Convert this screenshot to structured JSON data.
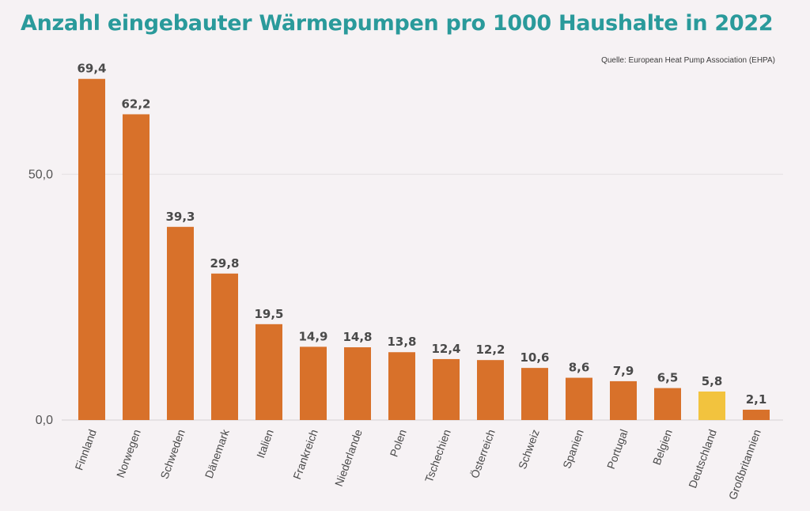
{
  "title": "Anzahl eingebauter Wärmepumpen pro 1000 Haushalte in 2022",
  "source": "Quelle: European Heat Pump Association (EHPA)",
  "colors": {
    "bar": "#d8712a",
    "highlight": "#f2c33e",
    "title": "#2a9a9b",
    "background": "#f6f2f4"
  },
  "chart_data": {
    "type": "bar",
    "title": "Anzahl eingebauter Wärmepumpen pro 1000 Haushalte in 2022",
    "xlabel": "",
    "ylabel": "",
    "ylim": [
      0,
      70
    ],
    "yticks": [
      0,
      50
    ],
    "ytick_labels": [
      "0,0",
      "50,0"
    ],
    "grid": true,
    "legend": "none",
    "highlight_category": "Deutschland",
    "categories": [
      "Finnland",
      "Norwegen",
      "Schweden",
      "Dänemark",
      "Italien",
      "Frankreich",
      "Niederlande",
      "Polen",
      "Tschechien",
      "Österreich",
      "Schweiz",
      "Spanien",
      "Portugal",
      "Belgien",
      "Deutschland",
      "Großbritannien"
    ],
    "values": [
      69.4,
      62.2,
      39.3,
      29.8,
      19.5,
      14.9,
      14.8,
      13.8,
      12.4,
      12.2,
      10.6,
      8.6,
      7.9,
      6.5,
      5.8,
      2.1
    ],
    "value_labels": [
      "69,4",
      "62,2",
      "39,3",
      "29,8",
      "19,5",
      "14,9",
      "14,8",
      "13,8",
      "12,4",
      "12,2",
      "10,6",
      "8,6",
      "7,9",
      "6,5",
      "5,8",
      "2,1"
    ]
  }
}
